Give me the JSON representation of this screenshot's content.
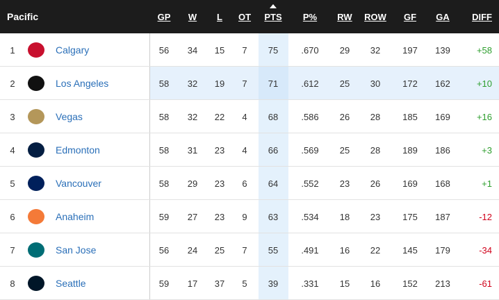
{
  "header": {
    "title": "Pacific",
    "columns": [
      "GP",
      "W",
      "L",
      "OT",
      "PTS",
      "P%",
      "RW",
      "ROW",
      "GF",
      "GA",
      "DIFF"
    ]
  },
  "rows": [
    {
      "rank": "1",
      "team": "Calgary",
      "stats": [
        "56",
        "34",
        "15",
        "7",
        "75",
        ".670",
        "29",
        "32",
        "197",
        "139",
        "+58"
      ]
    },
    {
      "rank": "2",
      "team": "Los Angeles",
      "stats": [
        "58",
        "32",
        "19",
        "7",
        "71",
        ".612",
        "25",
        "30",
        "172",
        "162",
        "+10"
      ]
    },
    {
      "rank": "3",
      "team": "Vegas",
      "stats": [
        "58",
        "32",
        "22",
        "4",
        "68",
        ".586",
        "26",
        "28",
        "185",
        "169",
        "+16"
      ]
    },
    {
      "rank": "4",
      "team": "Edmonton",
      "stats": [
        "58",
        "31",
        "23",
        "4",
        "66",
        ".569",
        "25",
        "28",
        "189",
        "186",
        "+3"
      ]
    },
    {
      "rank": "5",
      "team": "Vancouver",
      "stats": [
        "58",
        "29",
        "23",
        "6",
        "64",
        ".552",
        "23",
        "26",
        "169",
        "168",
        "+1"
      ]
    },
    {
      "rank": "6",
      "team": "Anaheim",
      "stats": [
        "59",
        "27",
        "23",
        "9",
        "63",
        ".534",
        "18",
        "23",
        "175",
        "187",
        "-12"
      ]
    },
    {
      "rank": "7",
      "team": "San Jose",
      "stats": [
        "56",
        "24",
        "25",
        "7",
        "55",
        ".491",
        "16",
        "22",
        "145",
        "179",
        "-34"
      ]
    },
    {
      "rank": "8",
      "team": "Seattle",
      "stats": [
        "59",
        "17",
        "37",
        "5",
        "39",
        ".331",
        "15",
        "16",
        "152",
        "213",
        "-61"
      ]
    }
  ]
}
